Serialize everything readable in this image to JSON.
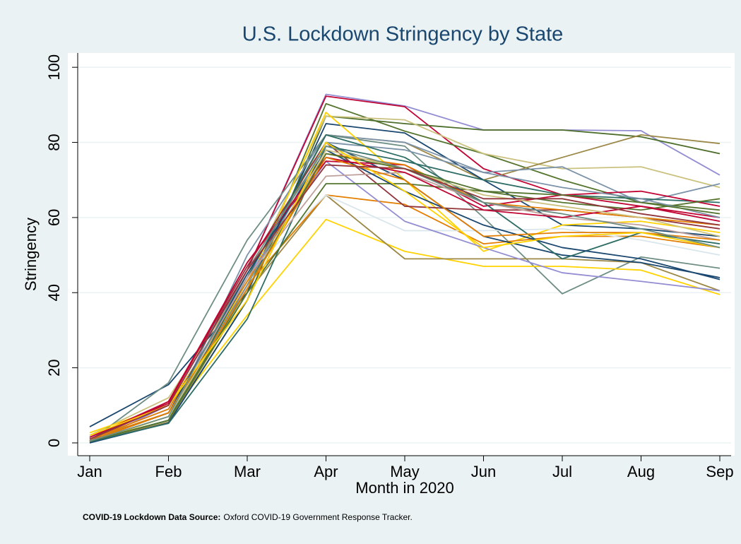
{
  "chart_data": {
    "type": "line",
    "title": "U.S. Lockdown Stringency by State",
    "x_label": "Month in 2020",
    "y_label": "Stringency",
    "note_label": "COVID-19 Lockdown Data Source:",
    "note_text": "Oxford COVID-19 Government Response Tracker.",
    "categories": [
      "Jan",
      "Feb",
      "Mar",
      "Apr",
      "May",
      "Jun",
      "Jul",
      "Aug",
      "Sep"
    ],
    "ylim": [
      -3.4,
      103.8
    ],
    "yticks": [
      0,
      20,
      40,
      60,
      80,
      100
    ],
    "grid": true,
    "series": [
      {
        "color": "#938dd2",
        "values": [
          0,
          10,
          46,
          92.8,
          89.7,
          83.3,
          83.3,
          83.1,
          71.3
        ]
      },
      {
        "color": "#c10534",
        "values": [
          0.5,
          11,
          46,
          92.3,
          89.5,
          73,
          66,
          63,
          60
        ]
      },
      {
        "color": "#55752f",
        "values": [
          0.5,
          6,
          40,
          90.3,
          83,
          77,
          70,
          64,
          62
        ]
      },
      {
        "color": "#4d6e2a",
        "values": [
          0.3,
          5.5,
          38,
          87,
          85,
          83.3,
          83.3,
          81.5,
          77
        ]
      },
      {
        "color": "#cac27e",
        "values": [
          2,
          12,
          44,
          87,
          86,
          77,
          73,
          73.5,
          68
        ]
      },
      {
        "color": "#9c8847",
        "values": [
          0.3,
          6,
          42,
          82,
          80,
          70,
          76,
          82,
          79.7
        ]
      },
      {
        "color": "#1a476f",
        "values": [
          4.3,
          15.5,
          40,
          85,
          82.5,
          70,
          58,
          57,
          55
        ]
      },
      {
        "color": "#7b92a8",
        "values": [
          0.5,
          6,
          50,
          82,
          80,
          72,
          73.5,
          64,
          69
        ]
      },
      {
        "color": "#6e8e84",
        "values": [
          0.5,
          16,
          54,
          82,
          79,
          60,
          39.7,
          49.5,
          46.5
        ]
      },
      {
        "color": "#ffd200",
        "values": [
          2.7,
          10,
          42,
          88,
          70,
          51,
          58,
          59,
          56
        ]
      },
      {
        "color": "#ffd200",
        "values": [
          0.2,
          7,
          34,
          59.5,
          51,
          47,
          47,
          46,
          39.5
        ]
      },
      {
        "color": "#9c8847",
        "values": [
          0.3,
          5.5,
          40,
          66,
          49,
          49,
          49,
          48,
          40.5
        ]
      },
      {
        "color": "#e37e00",
        "values": [
          1,
          8,
          42,
          66,
          63.5,
          53,
          55,
          55,
          52
        ]
      },
      {
        "color": "#d9e6eb",
        "values": [
          0.5,
          7,
          45,
          66,
          56.5,
          56.5,
          57,
          54,
          50
        ]
      },
      {
        "color": "#938dd2",
        "values": [
          1,
          9,
          44,
          75,
          59,
          52,
          45.3,
          43,
          40.5
        ]
      },
      {
        "color": "#1a476f",
        "values": [
          0,
          5.3,
          38,
          80,
          70,
          55,
          50,
          48,
          44
        ]
      },
      {
        "color": "#90353b",
        "values": [
          1,
          11,
          47,
          80,
          63,
          62,
          62,
          60,
          57
        ]
      },
      {
        "color": "#2d6d66",
        "values": [
          0.3,
          5.2,
          33,
          79,
          75,
          70,
          66,
          65,
          64
        ]
      },
      {
        "color": "#c10534",
        "values": [
          1.5,
          11,
          48,
          75,
          74,
          63,
          66,
          67,
          63
        ]
      },
      {
        "color": "#e37e00",
        "values": [
          1,
          9,
          43,
          77,
          74,
          64,
          62,
          60,
          58
        ]
      },
      {
        "color": "#55752f",
        "values": [
          0.5,
          6,
          40,
          69,
          69,
          67,
          64,
          62,
          65
        ]
      },
      {
        "color": "#7b92a8",
        "values": [
          0.5,
          7,
          42,
          80,
          78,
          72,
          68,
          65,
          60
        ]
      },
      {
        "color": "#2d6d66",
        "values": [
          0.5,
          6,
          44,
          82,
          76,
          64,
          49,
          56,
          53
        ]
      },
      {
        "color": "#bfa19c",
        "values": [
          0.5,
          8,
          44,
          71,
          72,
          64,
          60,
          58,
          54
        ]
      },
      {
        "color": "#1a476f",
        "values": [
          0.5,
          8,
          45,
          78,
          67,
          58,
          52,
          49,
          43.5
        ]
      },
      {
        "color": "#c10534",
        "values": [
          1.5,
          10.5,
          48,
          76,
          72,
          62,
          60,
          63,
          59
        ]
      },
      {
        "color": "#cac27e",
        "values": [
          0.5,
          7,
          41,
          78,
          73,
          66,
          63,
          60,
          55
        ]
      },
      {
        "color": "#55752f",
        "values": [
          0.5,
          6,
          41,
          77,
          73,
          67,
          66,
          64,
          61
        ]
      },
      {
        "color": "#e37e00",
        "values": [
          0.5,
          8,
          41,
          76,
          70,
          55,
          56,
          56,
          54
        ]
      },
      {
        "color": "#ffd200",
        "values": [
          2,
          10,
          38,
          80,
          67,
          52,
          55,
          56,
          52
        ]
      },
      {
        "color": "#6e8e84",
        "values": [
          0.5,
          7,
          46,
          79,
          73,
          64,
          61,
          57,
          52
        ]
      },
      {
        "color": "#90353b",
        "values": [
          1,
          10,
          46,
          74,
          73,
          65,
          65,
          61,
          58
        ]
      }
    ]
  }
}
